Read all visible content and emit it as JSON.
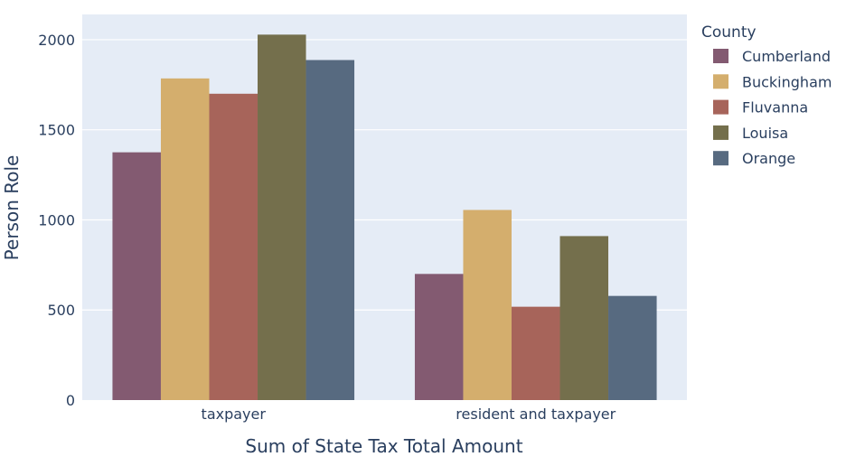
{
  "chart_data": {
    "type": "bar",
    "categories": [
      "taxpayer",
      "resident and taxpayer"
    ],
    "series": [
      {
        "name": "Cumberland",
        "values": [
          1375,
          700
        ]
      },
      {
        "name": "Buckingham",
        "values": [
          1785,
          1055
        ]
      },
      {
        "name": "Fluvanna",
        "values": [
          1700,
          518
        ]
      },
      {
        "name": "Louisa",
        "values": [
          2028,
          910
        ]
      },
      {
        "name": "Orange",
        "values": [
          1887,
          578
        ]
      }
    ],
    "xlabel": "Sum of State Tax Total Amount",
    "ylabel": "Person Role",
    "ylim": [
      0,
      2140
    ],
    "yticks": [
      0,
      500,
      1000,
      1500,
      2000
    ],
    "legend_title": "County",
    "legend_position": "right",
    "grid": true,
    "colors": {
      "plot_bg": "#e5ecf6",
      "grid": "#ffffff",
      "text": "#2a3f5f",
      "series": [
        "#835a71",
        "#d4ae6d",
        "#a7645a",
        "#746f4c",
        "#576a80"
      ]
    }
  }
}
